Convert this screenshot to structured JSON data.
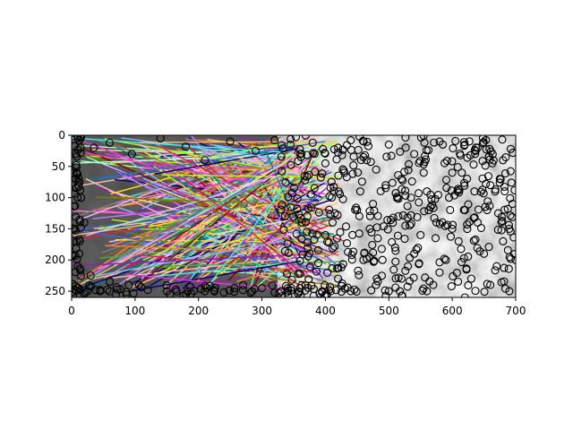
{
  "chart_data": {
    "type": "scatter",
    "title": "",
    "xlabel": "",
    "ylabel": "",
    "xlim": [
      0,
      700
    ],
    "ylim": [
      260,
      0
    ],
    "y_axis_inverted": true,
    "grid": false,
    "legend": "none",
    "xticks": [
      0,
      100,
      200,
      300,
      400,
      500,
      600,
      700
    ],
    "yticks": [
      0,
      50,
      100,
      150,
      200,
      250
    ],
    "background_image": "grayscale-texture",
    "marker": "open-circle",
    "marker_color": "#000000",
    "series": [
      {
        "values_note": "keypoint circles scattered over image",
        "points": [
          [
            12,
            8
          ],
          [
            35,
            20
          ],
          [
            60,
            12
          ],
          [
            95,
            30
          ],
          [
            140,
            5
          ],
          [
            180,
            18
          ],
          [
            210,
            40
          ],
          [
            250,
            10
          ],
          [
            290,
            25
          ],
          [
            320,
            8
          ],
          [
            345,
            15
          ],
          [
            360,
            30
          ],
          [
            380,
            12
          ],
          [
            400,
            45
          ],
          [
            420,
            20
          ],
          [
            440,
            8
          ],
          [
            460,
            35
          ],
          [
            480,
            55
          ],
          [
            500,
            15
          ],
          [
            520,
            70
          ],
          [
            540,
            30
          ],
          [
            560,
            90
          ],
          [
            580,
            10
          ],
          [
            600,
            60
          ],
          [
            620,
            120
          ],
          [
            640,
            20
          ],
          [
            660,
            80
          ],
          [
            680,
            40
          ],
          [
            695,
            110
          ],
          [
            450,
            120
          ],
          [
            470,
            150
          ],
          [
            490,
            200
          ],
          [
            510,
            180
          ],
          [
            530,
            210
          ],
          [
            550,
            160
          ],
          [
            570,
            240
          ],
          [
            590,
            200
          ],
          [
            610,
            170
          ],
          [
            630,
            230
          ],
          [
            650,
            190
          ],
          [
            670,
            210
          ],
          [
            690,
            250
          ],
          [
            420,
            230
          ],
          [
            440,
            250
          ],
          [
            460,
            200
          ],
          [
            480,
            240
          ],
          [
            500,
            250
          ],
          [
            520,
            230
          ],
          [
            540,
            190
          ],
          [
            560,
            250
          ],
          [
            580,
            220
          ],
          [
            600,
            150
          ],
          [
            620,
            260
          ],
          [
            640,
            140
          ],
          [
            660,
            240
          ],
          [
            680,
            170
          ],
          [
            700,
            200
          ],
          [
            400,
            160
          ],
          [
            410,
            100
          ],
          [
            430,
            60
          ],
          [
            455,
            90
          ],
          [
            475,
            110
          ],
          [
            495,
            80
          ],
          [
            515,
            130
          ],
          [
            535,
            100
          ],
          [
            555,
            60
          ],
          [
            575,
            140
          ],
          [
            595,
            100
          ],
          [
            615,
            60
          ],
          [
            635,
            90
          ],
          [
            655,
            120
          ],
          [
            675,
            70
          ],
          [
            690,
            150
          ],
          [
            395,
            250
          ],
          [
            360,
            245
          ],
          [
            330,
            250
          ],
          [
            300,
            245
          ],
          [
            270,
            248
          ],
          [
            240,
            252
          ],
          [
            210,
            250
          ],
          [
            180,
            255
          ],
          [
            150,
            250
          ],
          [
            120,
            248
          ],
          [
            90,
            240
          ],
          [
            60,
            235
          ],
          [
            30,
            225
          ],
          [
            10,
            210
          ],
          [
            5,
            150
          ],
          [
            15,
            100
          ],
          [
            8,
            60
          ],
          [
            20,
            140
          ],
          [
            12,
            190
          ],
          [
            25,
            250
          ],
          [
            45,
            248
          ],
          [
            70,
            255
          ]
        ]
      }
    ],
    "lines_note": "many colored match lines radiating from left region toward x≈300-420",
    "line_colors": [
      "#e6194b",
      "#3cb44b",
      "#ffe119",
      "#4363d8",
      "#f58231",
      "#911eb4",
      "#46f0f0",
      "#f032e6",
      "#bcf60c",
      "#fabebe",
      "#008080",
      "#e6beff",
      "#9a6324",
      "#800000",
      "#aaffc3",
      "#808000",
      "#ffd8b1",
      "#000075",
      "#808080",
      "#7fff7f",
      "#ff7fbf",
      "#7fbfff",
      "#bf7fff",
      "#ffbf7f"
    ]
  }
}
